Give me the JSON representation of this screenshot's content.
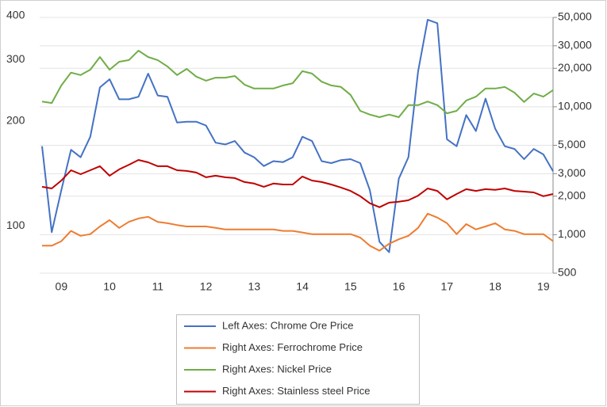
{
  "chart_data": {
    "type": "line",
    "x": [
      2009.1,
      2009.3,
      2009.5,
      2009.7,
      2009.9,
      2010.1,
      2010.3,
      2010.5,
      2010.7,
      2010.9,
      2011.1,
      2011.3,
      2011.5,
      2011.7,
      2011.9,
      2012.1,
      2012.3,
      2012.5,
      2012.7,
      2012.9,
      2013.1,
      2013.3,
      2013.5,
      2013.7,
      2013.9,
      2014.1,
      2014.3,
      2014.5,
      2014.7,
      2014.9,
      2015.1,
      2015.3,
      2015.5,
      2015.7,
      2015.9,
      2016.1,
      2016.3,
      2016.5,
      2016.7,
      2016.9,
      2017.1,
      2017.3,
      2017.5,
      2017.7,
      2017.9,
      2018.1,
      2018.3,
      2018.5,
      2018.7,
      2018.9,
      2019.1,
      2019.3,
      2019.5,
      2019.7
    ],
    "xlim": [
      2009.05,
      2019.7
    ],
    "xticks": [
      {
        "value": 2009.5,
        "label": "09"
      },
      {
        "value": 2010.5,
        "label": "10"
      },
      {
        "value": 2011.5,
        "label": "11"
      },
      {
        "value": 2012.5,
        "label": "12"
      },
      {
        "value": 2013.5,
        "label": "13"
      },
      {
        "value": 2014.5,
        "label": "14"
      },
      {
        "value": 2015.5,
        "label": "15"
      },
      {
        "value": 2016.5,
        "label": "16"
      },
      {
        "value": 2017.5,
        "label": "17"
      },
      {
        "value": 2018.5,
        "label": "18"
      },
      {
        "value": 2019.5,
        "label": "19"
      }
    ],
    "ylim": [
      74,
      400
    ],
    "ylog": true,
    "yticks": [
      100,
      200,
      300,
      400
    ],
    "y2lim": [
      500,
      50000
    ],
    "y2log": true,
    "y2ticks": [
      500,
      {
        "value": 1000,
        "label": "1,000"
      },
      {
        "value": 2000,
        "label": "2,000"
      },
      {
        "value": 3000,
        "label": "3,000"
      },
      {
        "value": 5000,
        "label": "5,000"
      },
      {
        "value": 10000,
        "label": "10,000"
      },
      {
        "value": 20000,
        "label": "20,000"
      },
      {
        "value": 30000,
        "label": "30,000"
      },
      {
        "value": 50000,
        "label": "50,000"
      }
    ],
    "grid": true,
    "legend": "bottom",
    "series": [
      {
        "name": "Left Axes: Chrome Ore Price",
        "color": "#4472c4",
        "axis": "y",
        "values": [
          171,
          97,
          128,
          167,
          159,
          182,
          252,
          266,
          233,
          233,
          237,
          276,
          239,
          237,
          200,
          201,
          201,
          196,
          175,
          173,
          177,
          164,
          159,
          150,
          155,
          154,
          159,
          182,
          177,
          155,
          153,
          156,
          157,
          153,
          128,
          91,
          85,
          138,
          159,
          280,
          394,
          385,
          179,
          171,
          210,
          189,
          234,
          192,
          171,
          168,
          157,
          168,
          162,
          145
        ]
      },
      {
        "name": "Right Axes: Ferrochrome Price",
        "color": "#ed7d31",
        "axis": "y2",
        "values": [
          820,
          820,
          890,
          1070,
          980,
          1010,
          1160,
          1300,
          1130,
          1260,
          1340,
          1380,
          1260,
          1230,
          1190,
          1160,
          1160,
          1160,
          1130,
          1100,
          1100,
          1100,
          1100,
          1100,
          1100,
          1070,
          1070,
          1040,
          1010,
          1010,
          1010,
          1010,
          1010,
          950,
          820,
          750,
          850,
          920,
          980,
          1130,
          1460,
          1360,
          1230,
          1010,
          1210,
          1100,
          1160,
          1230,
          1100,
          1070,
          1010,
          1010,
          1010,
          890
        ]
      },
      {
        "name": "Right Axes: Nickel Price",
        "color": "#70ad47",
        "axis": "y2",
        "values": [
          11000,
          10700,
          14700,
          18500,
          17700,
          19500,
          24500,
          19500,
          22500,
          23200,
          27500,
          24500,
          23200,
          20700,
          17700,
          19800,
          17200,
          16000,
          16900,
          16900,
          17400,
          14900,
          13900,
          13900,
          13900,
          14700,
          15300,
          19000,
          18200,
          15700,
          14700,
          14300,
          12400,
          9300,
          8700,
          8300,
          8700,
          8300,
          10300,
          10300,
          11000,
          10300,
          8900,
          9300,
          11200,
          12000,
          13900,
          13900,
          14300,
          12900,
          10900,
          12700,
          12000,
          13500
        ]
      },
      {
        "name": "Right Axes: Stainless steel Price",
        "color": "#c00000",
        "axis": "y2",
        "values": [
          2370,
          2300,
          2650,
          3190,
          2970,
          3190,
          3430,
          2890,
          3240,
          3520,
          3840,
          3680,
          3430,
          3430,
          3190,
          3150,
          3060,
          2810,
          2890,
          2810,
          2770,
          2580,
          2510,
          2370,
          2510,
          2470,
          2470,
          2850,
          2650,
          2580,
          2470,
          2340,
          2200,
          2000,
          1760,
          1640,
          1780,
          1810,
          1860,
          2020,
          2300,
          2200,
          1890,
          2080,
          2270,
          2200,
          2270,
          2240,
          2300,
          2200,
          2170,
          2140,
          2000,
          2080
        ]
      }
    ]
  }
}
